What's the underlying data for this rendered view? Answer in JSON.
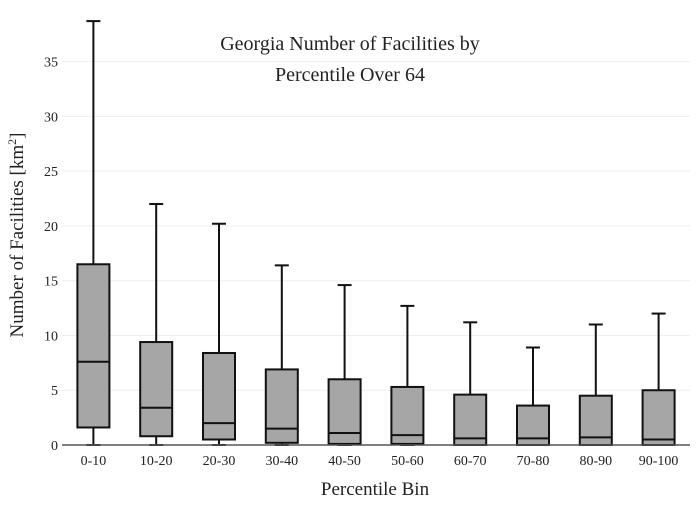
{
  "chart_data": {
    "type": "box",
    "title_lines": [
      "Georgia Number of Facilities by",
      "Percentile Over 64"
    ],
    "xlabel": "Percentile Bin",
    "ylabel": {
      "text": "Number of Facilities  [km",
      "superscript": "2",
      "suffix": "]"
    },
    "ylim": [
      0,
      38.8
    ],
    "yticks": [
      0,
      5,
      10,
      15,
      20,
      25,
      30,
      35
    ],
    "grid": true,
    "categories": [
      "0-10",
      "10-20",
      "20-30",
      "30-40",
      "40-50",
      "50-60",
      "60-70",
      "70-80",
      "80-90",
      "90-100"
    ],
    "boxes": [
      {
        "min": 0.0,
        "q1": 1.6,
        "median": 7.6,
        "q3": 16.5,
        "max": 38.7
      },
      {
        "min": 0.0,
        "q1": 0.8,
        "median": 3.4,
        "q3": 9.4,
        "max": 22.0
      },
      {
        "min": 0.0,
        "q1": 0.5,
        "median": 2.0,
        "q3": 8.4,
        "max": 20.2
      },
      {
        "min": 0.0,
        "q1": 0.2,
        "median": 1.5,
        "q3": 6.9,
        "max": 16.4
      },
      {
        "min": 0.0,
        "q1": 0.1,
        "median": 1.1,
        "q3": 6.0,
        "max": 14.6
      },
      {
        "min": 0.0,
        "q1": 0.1,
        "median": 0.9,
        "q3": 5.3,
        "max": 12.7
      },
      {
        "min": 0.0,
        "q1": 0.0,
        "median": 0.6,
        "q3": 4.6,
        "max": 11.2
      },
      {
        "min": 0.0,
        "q1": 0.0,
        "median": 0.6,
        "q3": 3.6,
        "max": 8.9
      },
      {
        "min": 0.0,
        "q1": 0.0,
        "median": 0.7,
        "q3": 4.5,
        "max": 11.0
      },
      {
        "min": 0.0,
        "q1": 0.0,
        "median": 0.5,
        "q3": 5.0,
        "max": 12.0
      }
    ],
    "colors": {
      "box_fill": "#a6a6a6",
      "stroke": "#111111",
      "grid": "#eeeeee",
      "axis": "#555555"
    }
  }
}
